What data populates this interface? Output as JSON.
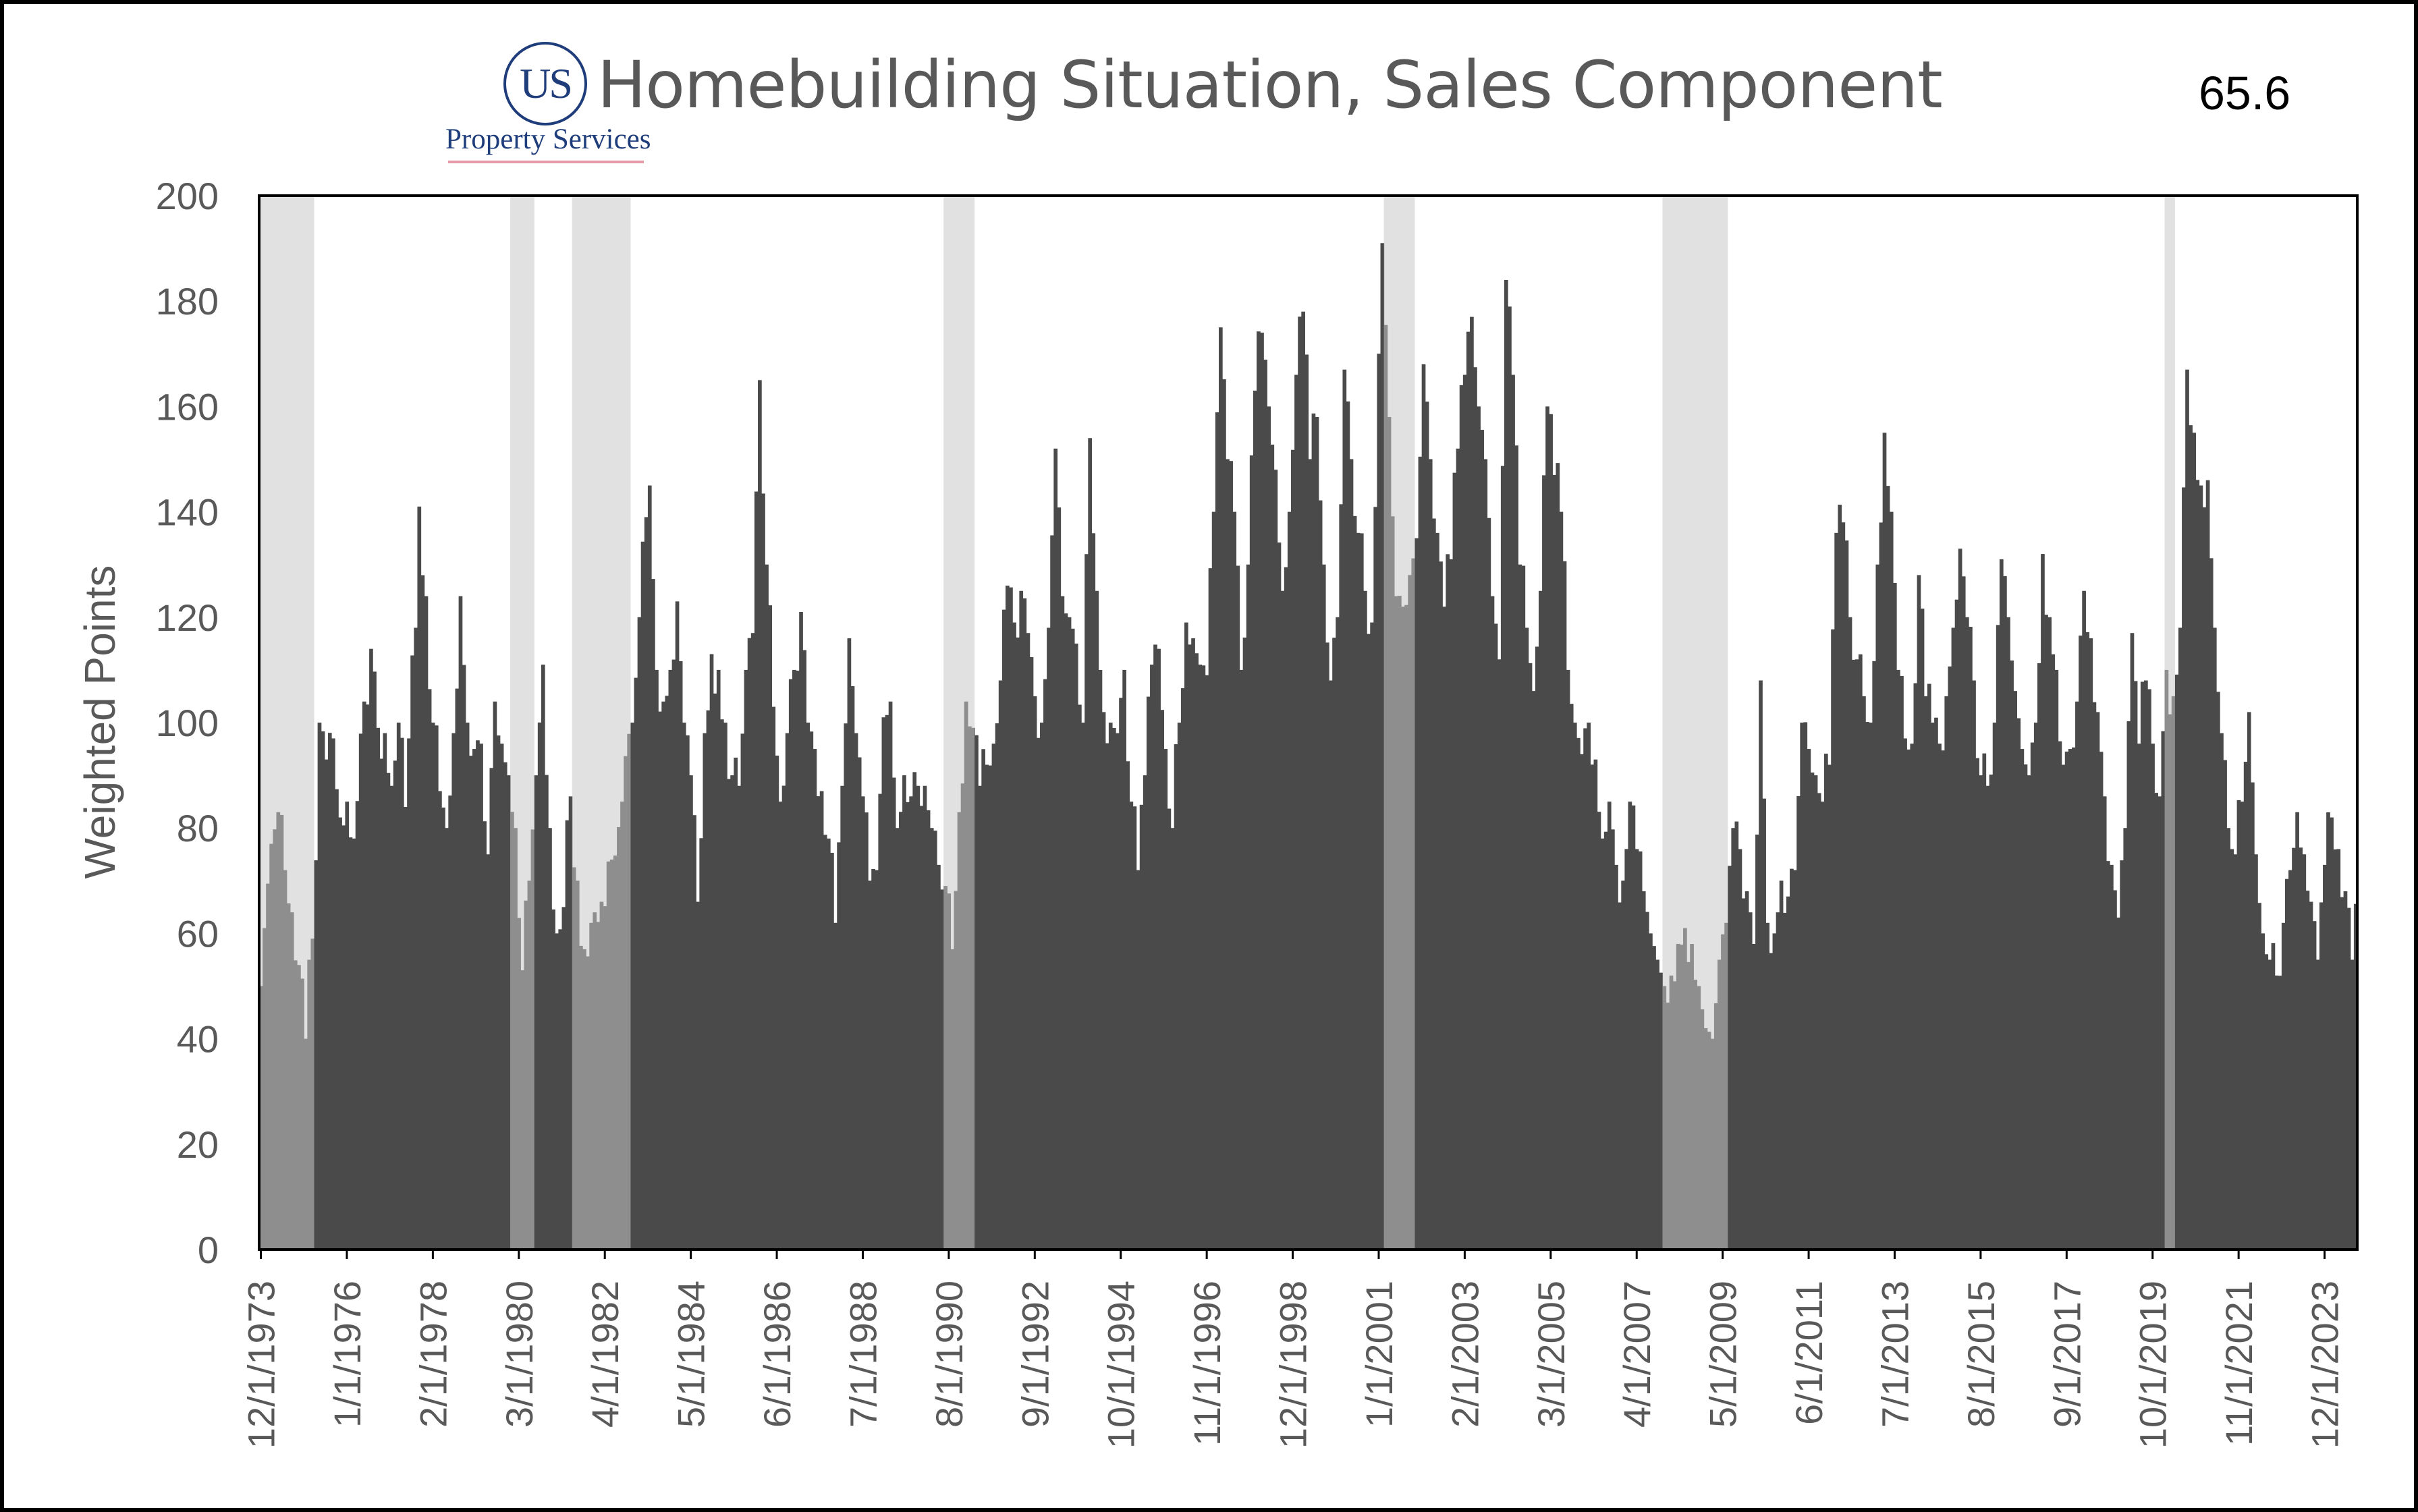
{
  "logo": {
    "mark": "US",
    "subtitle": "Property Services"
  },
  "title": "Homebuilding Situation, Sales Component",
  "latest_value": "65.6",
  "colors": {
    "bars": "#4a4a4a",
    "recession_shading": "#cfcfcf",
    "frame": "#000000",
    "axis_text": "#595959"
  },
  "chart_data": {
    "type": "bar",
    "title": "Homebuilding Situation, Sales Component",
    "ylabel": "Weighted Points",
    "xlabel": "",
    "ylim": [
      0,
      200
    ],
    "y_ticks": [
      0,
      20,
      40,
      60,
      80,
      100,
      120,
      140,
      160,
      180,
      200
    ],
    "x_tick_labels": [
      "12/1/1973",
      "1/1/1976",
      "2/1/1978",
      "3/1/1980",
      "4/1/1982",
      "5/1/1984",
      "6/1/1986",
      "7/1/1988",
      "8/1/1990",
      "9/1/1992",
      "10/1/1994",
      "11/1/1996",
      "12/1/1998",
      "1/1/2001",
      "2/1/2003",
      "3/1/2005",
      "4/1/2007",
      "5/1/2009",
      "6/1/2011",
      "7/1/2013",
      "8/1/2015",
      "9/1/2017",
      "10/1/2019",
      "11/1/2021",
      "12/1/2023"
    ],
    "x_range": [
      "1973-12",
      "2024-09"
    ],
    "frequency": "monthly",
    "series_anchors": [
      [
        "1973-12",
        50
      ],
      [
        "1974-01",
        61
      ],
      [
        "1974-03",
        77
      ],
      [
        "1974-05",
        83
      ],
      [
        "1974-07",
        72
      ],
      [
        "1974-09",
        64
      ],
      [
        "1974-11",
        54
      ],
      [
        "1975-01",
        40
      ],
      [
        "1975-03",
        59
      ],
      [
        "1975-05",
        100
      ],
      [
        "1975-07",
        93
      ],
      [
        "1975-09",
        97
      ],
      [
        "1975-11",
        82
      ],
      [
        "1976-01",
        85
      ],
      [
        "1976-03",
        78
      ],
      [
        "1976-06",
        104
      ],
      [
        "1976-08",
        114
      ],
      [
        "1976-10",
        99
      ],
      [
        "1976-12",
        98
      ],
      [
        "1977-02",
        88
      ],
      [
        "1977-04",
        100
      ],
      [
        "1977-06",
        84
      ],
      [
        "1977-07",
        97
      ],
      [
        "1977-09",
        118
      ],
      [
        "1977-10",
        141
      ],
      [
        "1977-12",
        124
      ],
      [
        "1978-02",
        100
      ],
      [
        "1978-04",
        87
      ],
      [
        "1978-06",
        80
      ],
      [
        "1978-08",
        98
      ],
      [
        "1978-10",
        124
      ],
      [
        "1978-12",
        100
      ],
      [
        "1979-02",
        95
      ],
      [
        "1979-04",
        96
      ],
      [
        "1979-06",
        75
      ],
      [
        "1979-08",
        104
      ],
      [
        "1979-10",
        96
      ],
      [
        "1979-12",
        90
      ],
      [
        "1980-02",
        80
      ],
      [
        "1980-04",
        53
      ],
      [
        "1980-06",
        70
      ],
      [
        "1980-08",
        90
      ],
      [
        "1980-10",
        111
      ],
      [
        "1980-12",
        80
      ],
      [
        "1981-02",
        60
      ],
      [
        "1981-04",
        65
      ],
      [
        "1981-06",
        86
      ],
      [
        "1981-08",
        70
      ],
      [
        "1981-10",
        57
      ],
      [
        "1981-12",
        62
      ],
      [
        "1982-03",
        66
      ],
      [
        "1982-06",
        74
      ],
      [
        "1982-09",
        85
      ],
      [
        "1982-12",
        100
      ],
      [
        "1983-02",
        120
      ],
      [
        "1983-04",
        139
      ],
      [
        "1983-05",
        145
      ],
      [
        "1983-07",
        110
      ],
      [
        "1983-09",
        104
      ],
      [
        "1983-11",
        110
      ],
      [
        "1984-01",
        123
      ],
      [
        "1984-03",
        100
      ],
      [
        "1984-05",
        90
      ],
      [
        "1984-07",
        66
      ],
      [
        "1984-09",
        98
      ],
      [
        "1984-11",
        113
      ],
      [
        "1985-01",
        110
      ],
      [
        "1985-03",
        100
      ],
      [
        "1985-05",
        90
      ],
      [
        "1985-07",
        88
      ],
      [
        "1985-09",
        110
      ],
      [
        "1985-11",
        117
      ],
      [
        "1986-01",
        165
      ],
      [
        "1986-03",
        130
      ],
      [
        "1986-05",
        103
      ],
      [
        "1986-07",
        85
      ],
      [
        "1986-09",
        98
      ],
      [
        "1986-11",
        110
      ],
      [
        "1987-01",
        121
      ],
      [
        "1987-03",
        100
      ],
      [
        "1987-05",
        95
      ],
      [
        "1987-07",
        87
      ],
      [
        "1987-09",
        78
      ],
      [
        "1987-11",
        62
      ],
      [
        "1988-01",
        88
      ],
      [
        "1988-03",
        116
      ],
      [
        "1988-05",
        98
      ],
      [
        "1988-07",
        86
      ],
      [
        "1988-09",
        70
      ],
      [
        "1988-11",
        72
      ],
      [
        "1989-01",
        101
      ],
      [
        "1989-03",
        104
      ],
      [
        "1989-05",
        80
      ],
      [
        "1989-07",
        90
      ],
      [
        "1989-09",
        86
      ],
      [
        "1989-11",
        88
      ],
      [
        "1990-01",
        88
      ],
      [
        "1990-03",
        80
      ],
      [
        "1990-05",
        73
      ],
      [
        "1990-07",
        69
      ],
      [
        "1990-09",
        57
      ],
      [
        "1990-11",
        83
      ],
      [
        "1991-01",
        104
      ],
      [
        "1991-03",
        99
      ],
      [
        "1991-05",
        88
      ],
      [
        "1991-07",
        92
      ],
      [
        "1991-09",
        96
      ],
      [
        "1991-11",
        108
      ],
      [
        "1992-01",
        126
      ],
      [
        "1992-03",
        119
      ],
      [
        "1992-05",
        125
      ],
      [
        "1992-07",
        117
      ],
      [
        "1992-09",
        105
      ],
      [
        "1992-11",
        100
      ],
      [
        "1993-01",
        118
      ],
      [
        "1993-03",
        152
      ],
      [
        "1993-05",
        124
      ],
      [
        "1993-07",
        120
      ],
      [
        "1993-09",
        115
      ],
      [
        "1993-11",
        100
      ],
      [
        "1994-01",
        154
      ],
      [
        "1994-03",
        125
      ],
      [
        "1994-05",
        102
      ],
      [
        "1994-07",
        100
      ],
      [
        "1994-09",
        98
      ],
      [
        "1994-11",
        110
      ],
      [
        "1995-01",
        85
      ],
      [
        "1995-03",
        72
      ],
      [
        "1995-05",
        90
      ],
      [
        "1995-07",
        111
      ],
      [
        "1995-09",
        114
      ],
      [
        "1995-11",
        95
      ],
      [
        "1996-01",
        80
      ],
      [
        "1996-03",
        100
      ],
      [
        "1996-05",
        119
      ],
      [
        "1996-07",
        116
      ],
      [
        "1996-09",
        111
      ],
      [
        "1996-11",
        109
      ],
      [
        "1997-01",
        140
      ],
      [
        "1997-03",
        175
      ],
      [
        "1997-05",
        150
      ],
      [
        "1997-07",
        140
      ],
      [
        "1997-09",
        110
      ],
      [
        "1997-11",
        130
      ],
      [
        "1998-01",
        163
      ],
      [
        "1998-03",
        174
      ],
      [
        "1998-05",
        160
      ],
      [
        "1998-07",
        148
      ],
      [
        "1998-09",
        125
      ],
      [
        "1998-11",
        140
      ],
      [
        "1999-01",
        166
      ],
      [
        "1999-03",
        178
      ],
      [
        "1999-05",
        150
      ],
      [
        "1999-07",
        158
      ],
      [
        "1999-09",
        130
      ],
      [
        "1999-11",
        108
      ],
      [
        "2000-01",
        120
      ],
      [
        "2000-03",
        167
      ],
      [
        "2000-05",
        150
      ],
      [
        "2000-07",
        136
      ],
      [
        "2000-09",
        125
      ],
      [
        "2000-11",
        119
      ],
      [
        "2001-01",
        170
      ],
      [
        "2001-02",
        191
      ],
      [
        "2001-04",
        158
      ],
      [
        "2001-06",
        124
      ],
      [
        "2001-08",
        122
      ],
      [
        "2001-10",
        128
      ],
      [
        "2001-12",
        135
      ],
      [
        "2002-02",
        168
      ],
      [
        "2002-04",
        150
      ],
      [
        "2002-06",
        136
      ],
      [
        "2002-08",
        122
      ],
      [
        "2002-10",
        131
      ],
      [
        "2002-12",
        152
      ],
      [
        "2003-02",
        166
      ],
      [
        "2003-04",
        177
      ],
      [
        "2003-06",
        160
      ],
      [
        "2003-08",
        150
      ],
      [
        "2003-10",
        124
      ],
      [
        "2003-12",
        112
      ],
      [
        "2004-02",
        184
      ],
      [
        "2004-04",
        166
      ],
      [
        "2004-06",
        130
      ],
      [
        "2004-08",
        118
      ],
      [
        "2004-10",
        106
      ],
      [
        "2004-12",
        125
      ],
      [
        "2005-02",
        160
      ],
      [
        "2005-04",
        147
      ],
      [
        "2005-06",
        140
      ],
      [
        "2005-08",
        110
      ],
      [
        "2005-10",
        100
      ],
      [
        "2005-12",
        94
      ],
      [
        "2006-02",
        100
      ],
      [
        "2006-04",
        93
      ],
      [
        "2006-06",
        78
      ],
      [
        "2006-08",
        85
      ],
      [
        "2006-10",
        73
      ],
      [
        "2006-12",
        70
      ],
      [
        "2007-02",
        85
      ],
      [
        "2007-04",
        76
      ],
      [
        "2007-06",
        68
      ],
      [
        "2007-08",
        60
      ],
      [
        "2007-10",
        55
      ],
      [
        "2007-12",
        50
      ],
      [
        "2008-02",
        52
      ],
      [
        "2008-04",
        58
      ],
      [
        "2008-06",
        61
      ],
      [
        "2008-08",
        58
      ],
      [
        "2008-10",
        50
      ],
      [
        "2008-12",
        42
      ],
      [
        "2009-02",
        40
      ],
      [
        "2009-04",
        55
      ],
      [
        "2009-06",
        62
      ],
      [
        "2009-08",
        80
      ],
      [
        "2009-10",
        76
      ],
      [
        "2009-12",
        68
      ],
      [
        "2010-02",
        58
      ],
      [
        "2010-04",
        108
      ],
      [
        "2010-06",
        62
      ],
      [
        "2010-08",
        60
      ],
      [
        "2010-10",
        70
      ],
      [
        "2010-12",
        67
      ],
      [
        "2011-02",
        72
      ],
      [
        "2011-04",
        100
      ],
      [
        "2011-06",
        95
      ],
      [
        "2011-08",
        90
      ],
      [
        "2011-10",
        85
      ],
      [
        "2011-12",
        92
      ],
      [
        "2012-02",
        136
      ],
      [
        "2012-04",
        138
      ],
      [
        "2012-06",
        120
      ],
      [
        "2012-08",
        112
      ],
      [
        "2012-10",
        105
      ],
      [
        "2012-12",
        100
      ],
      [
        "2013-02",
        130
      ],
      [
        "2013-04",
        155
      ],
      [
        "2013-06",
        140
      ],
      [
        "2013-08",
        110
      ],
      [
        "2013-10",
        97
      ],
      [
        "2013-12",
        96
      ],
      [
        "2014-02",
        128
      ],
      [
        "2014-04",
        105
      ],
      [
        "2014-06",
        100
      ],
      [
        "2014-08",
        96
      ],
      [
        "2014-10",
        105
      ],
      [
        "2014-12",
        118
      ],
      [
        "2015-02",
        133
      ],
      [
        "2015-04",
        120
      ],
      [
        "2015-06",
        108
      ],
      [
        "2015-08",
        90
      ],
      [
        "2015-10",
        88
      ],
      [
        "2015-12",
        100
      ],
      [
        "2016-02",
        131
      ],
      [
        "2016-04",
        120
      ],
      [
        "2016-06",
        106
      ],
      [
        "2016-08",
        95
      ],
      [
        "2016-10",
        90
      ],
      [
        "2016-12",
        100
      ],
      [
        "2017-02",
        132
      ],
      [
        "2017-04",
        120
      ],
      [
        "2017-06",
        110
      ],
      [
        "2017-08",
        92
      ],
      [
        "2017-10",
        95
      ],
      [
        "2017-12",
        104
      ],
      [
        "2018-02",
        125
      ],
      [
        "2018-04",
        116
      ],
      [
        "2018-06",
        102
      ],
      [
        "2018-08",
        86
      ],
      [
        "2018-10",
        73
      ],
      [
        "2018-12",
        63
      ],
      [
        "2019-02",
        80
      ],
      [
        "2019-04",
        117
      ],
      [
        "2019-06",
        96
      ],
      [
        "2019-08",
        108
      ],
      [
        "2019-10",
        96
      ],
      [
        "2019-12",
        86
      ],
      [
        "2020-02",
        110
      ],
      [
        "2020-04",
        105
      ],
      [
        "2020-06",
        118
      ],
      [
        "2020-08",
        167
      ],
      [
        "2020-10",
        155
      ],
      [
        "2020-12",
        145
      ],
      [
        "2021-02",
        146
      ],
      [
        "2021-04",
        118
      ],
      [
        "2021-06",
        98
      ],
      [
        "2021-08",
        80
      ],
      [
        "2021-10",
        75
      ],
      [
        "2021-12",
        85
      ],
      [
        "2022-02",
        102
      ],
      [
        "2022-04",
        75
      ],
      [
        "2022-06",
        60
      ],
      [
        "2022-08",
        55
      ],
      [
        "2022-10",
        52
      ],
      [
        "2022-12",
        62
      ],
      [
        "2023-02",
        72
      ],
      [
        "2023-04",
        83
      ],
      [
        "2023-06",
        75
      ],
      [
        "2023-08",
        66
      ],
      [
        "2023-10",
        55
      ],
      [
        "2023-12",
        73
      ],
      [
        "2024-02",
        82
      ],
      [
        "2024-04",
        76
      ],
      [
        "2024-06",
        68
      ],
      [
        "2024-08",
        55
      ],
      [
        "2024-09",
        65.6
      ]
    ],
    "recession_periods": [
      [
        "1973-12",
        "1975-03"
      ],
      [
        "1980-01",
        "1980-07"
      ],
      [
        "1981-07",
        "1982-11"
      ],
      [
        "1990-07",
        "1991-03"
      ],
      [
        "2001-03",
        "2001-11"
      ],
      [
        "2007-12",
        "2009-06"
      ],
      [
        "2020-02",
        "2020-04"
      ]
    ]
  }
}
